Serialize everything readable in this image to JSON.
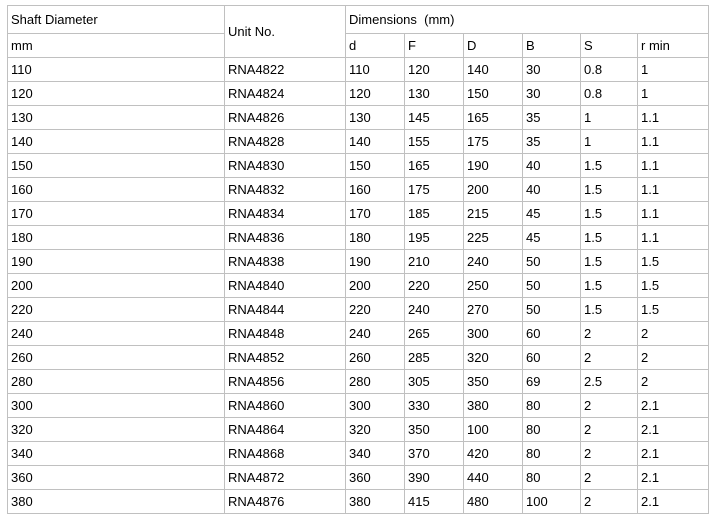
{
  "table": {
    "header": {
      "shaft_diameter": "Shaft Diameter",
      "shaft_diameter_unit": "mm",
      "unit_no": "Unit No.",
      "dimensions": "Dimensions  (mm)",
      "dim_columns": [
        "d",
        "F",
        "D",
        "B",
        "S",
        "r min"
      ]
    },
    "rows": [
      [
        "110",
        "RNA4822",
        "110",
        "120",
        "140",
        "30",
        "0.8",
        "1"
      ],
      [
        "120",
        "RNA4824",
        "120",
        "130",
        "150",
        "30",
        "0.8",
        "1"
      ],
      [
        "130",
        "RNA4826",
        "130",
        "145",
        "165",
        "35",
        "1",
        "1.1"
      ],
      [
        "140",
        "RNA4828",
        "140",
        "155",
        "175",
        "35",
        "1",
        "1.1"
      ],
      [
        "150",
        "RNA4830",
        "150",
        "165",
        "190",
        "40",
        "1.5",
        "1.1"
      ],
      [
        "160",
        "RNA4832",
        "160",
        "175",
        "200",
        "40",
        "1.5",
        "1.1"
      ],
      [
        "170",
        "RNA4834",
        "170",
        "185",
        "215",
        "45",
        "1.5",
        "1.1"
      ],
      [
        "180",
        "RNA4836",
        "180",
        "195",
        "225",
        "45",
        "1.5",
        "1.1"
      ],
      [
        "190",
        "RNA4838",
        "190",
        "210",
        "240",
        "50",
        "1.5",
        "1.5"
      ],
      [
        "200",
        "RNA4840",
        "200",
        "220",
        "250",
        "50",
        "1.5",
        "1.5"
      ],
      [
        "220",
        "RNA4844",
        "220",
        "240",
        "270",
        "50",
        "1.5",
        "1.5"
      ],
      [
        "240",
        "RNA4848",
        "240",
        "265",
        "300",
        "60",
        "2",
        "2"
      ],
      [
        "260",
        "RNA4852",
        "260",
        "285",
        "320",
        "60",
        "2",
        "2"
      ],
      [
        "280",
        "RNA4856",
        "280",
        "305",
        "350",
        "69",
        "2.5",
        "2"
      ],
      [
        "300",
        "RNA4860",
        "300",
        "330",
        "380",
        "80",
        "2",
        "2.1"
      ],
      [
        "320",
        "RNA4864",
        "320",
        "350",
        "100",
        "80",
        "2",
        "2.1"
      ],
      [
        "340",
        "RNA4868",
        "340",
        "370",
        "420",
        "80",
        "2",
        "2.1"
      ],
      [
        "360",
        "RNA4872",
        "360",
        "390",
        "440",
        "80",
        "2",
        "2.1"
      ],
      [
        "380",
        "RNA4876",
        "380",
        "415",
        "480",
        "100",
        "2",
        "2.1"
      ]
    ]
  },
  "colors": {
    "border": "#c0c0c0",
    "text": "#000000",
    "background": "#ffffff"
  }
}
